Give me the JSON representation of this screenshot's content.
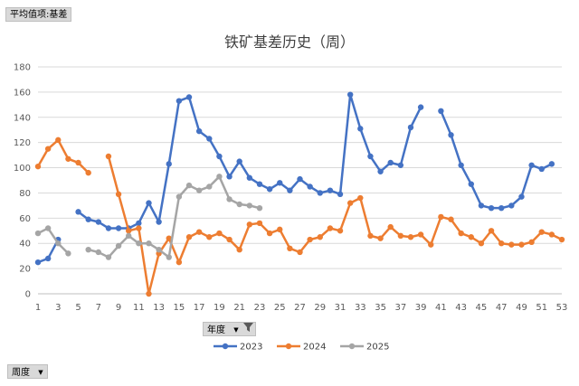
{
  "field_buttons": {
    "values": "平均值项:基差",
    "year": "年度",
    "week": "周度"
  },
  "colors": {
    "2023": "#4472c4",
    "2024": "#ed7d31",
    "2025": "#a5a5a5",
    "grid": "#d9d9d9"
  },
  "chart_data": {
    "type": "line",
    "title": "铁矿基差历史（周）",
    "xlabel": "",
    "ylabel": "",
    "ylim": [
      0,
      180
    ],
    "yticks": [
      0,
      20,
      40,
      60,
      80,
      100,
      120,
      140,
      160,
      180
    ],
    "xlim": [
      1,
      53
    ],
    "xticks": [
      1,
      3,
      5,
      7,
      9,
      11,
      13,
      15,
      17,
      19,
      21,
      23,
      25,
      27,
      29,
      31,
      33,
      35,
      37,
      39,
      41,
      43,
      45,
      47,
      49,
      51,
      53
    ],
    "grid": true,
    "legend": "bottom",
    "series": [
      {
        "name": "2023",
        "color": "#4472c4",
        "x": [
          1,
          2,
          3,
          5,
          6,
          7,
          8,
          9,
          10,
          11,
          12,
          13,
          14,
          15,
          16,
          17,
          18,
          19,
          20,
          21,
          22,
          23,
          24,
          25,
          26,
          27,
          28,
          29,
          30,
          31,
          32,
          33,
          34,
          35,
          36,
          37,
          38,
          39,
          41,
          42,
          43,
          44,
          45,
          46,
          47,
          48,
          49,
          50,
          51,
          52
        ],
        "values": [
          25,
          28,
          43,
          65,
          59,
          57,
          52,
          52,
          52,
          56,
          72,
          57,
          103,
          153,
          156,
          129,
          123,
          109,
          93,
          105,
          92,
          87,
          83,
          88,
          82,
          91,
          85,
          80,
          82,
          79,
          158,
          131,
          109,
          97,
          104,
          102,
          132,
          148,
          145,
          126,
          102,
          87,
          70,
          68,
          68,
          70,
          77,
          102,
          99,
          103
        ]
      },
      {
        "name": "2024",
        "color": "#ed7d31",
        "x": [
          1,
          2,
          3,
          4,
          5,
          6,
          8,
          9,
          10,
          11,
          12,
          13,
          14,
          15,
          16,
          17,
          18,
          19,
          20,
          21,
          22,
          23,
          24,
          25,
          26,
          27,
          28,
          29,
          30,
          31,
          32,
          33,
          34,
          35,
          36,
          37,
          38,
          39,
          40,
          41,
          42,
          43,
          44,
          45,
          46,
          47,
          48,
          49,
          50,
          51,
          52,
          53
        ],
        "values": [
          101,
          115,
          122,
          107,
          104,
          96,
          109,
          79,
          50,
          52,
          0,
          32,
          44,
          25,
          45,
          49,
          45,
          48,
          43,
          35,
          55,
          56,
          48,
          51,
          36,
          33,
          43,
          45,
          52,
          50,
          72,
          76,
          46,
          44,
          53,
          46,
          45,
          47,
          39,
          61,
          59,
          48,
          45,
          40,
          50,
          40,
          39,
          39,
          41,
          49,
          47,
          43
        ]
      },
      {
        "name": "2025",
        "color": "#a5a5a5",
        "x": [
          1,
          2,
          3,
          4,
          6,
          7,
          8,
          9,
          10,
          11,
          12,
          13,
          14,
          15,
          16,
          17,
          18,
          19,
          20,
          21,
          22,
          23
        ],
        "values": [
          48,
          52,
          40,
          32,
          35,
          33,
          29,
          38,
          46,
          40,
          40,
          35,
          29,
          77,
          86,
          82,
          85,
          93,
          75,
          71,
          70,
          68
        ]
      }
    ]
  }
}
